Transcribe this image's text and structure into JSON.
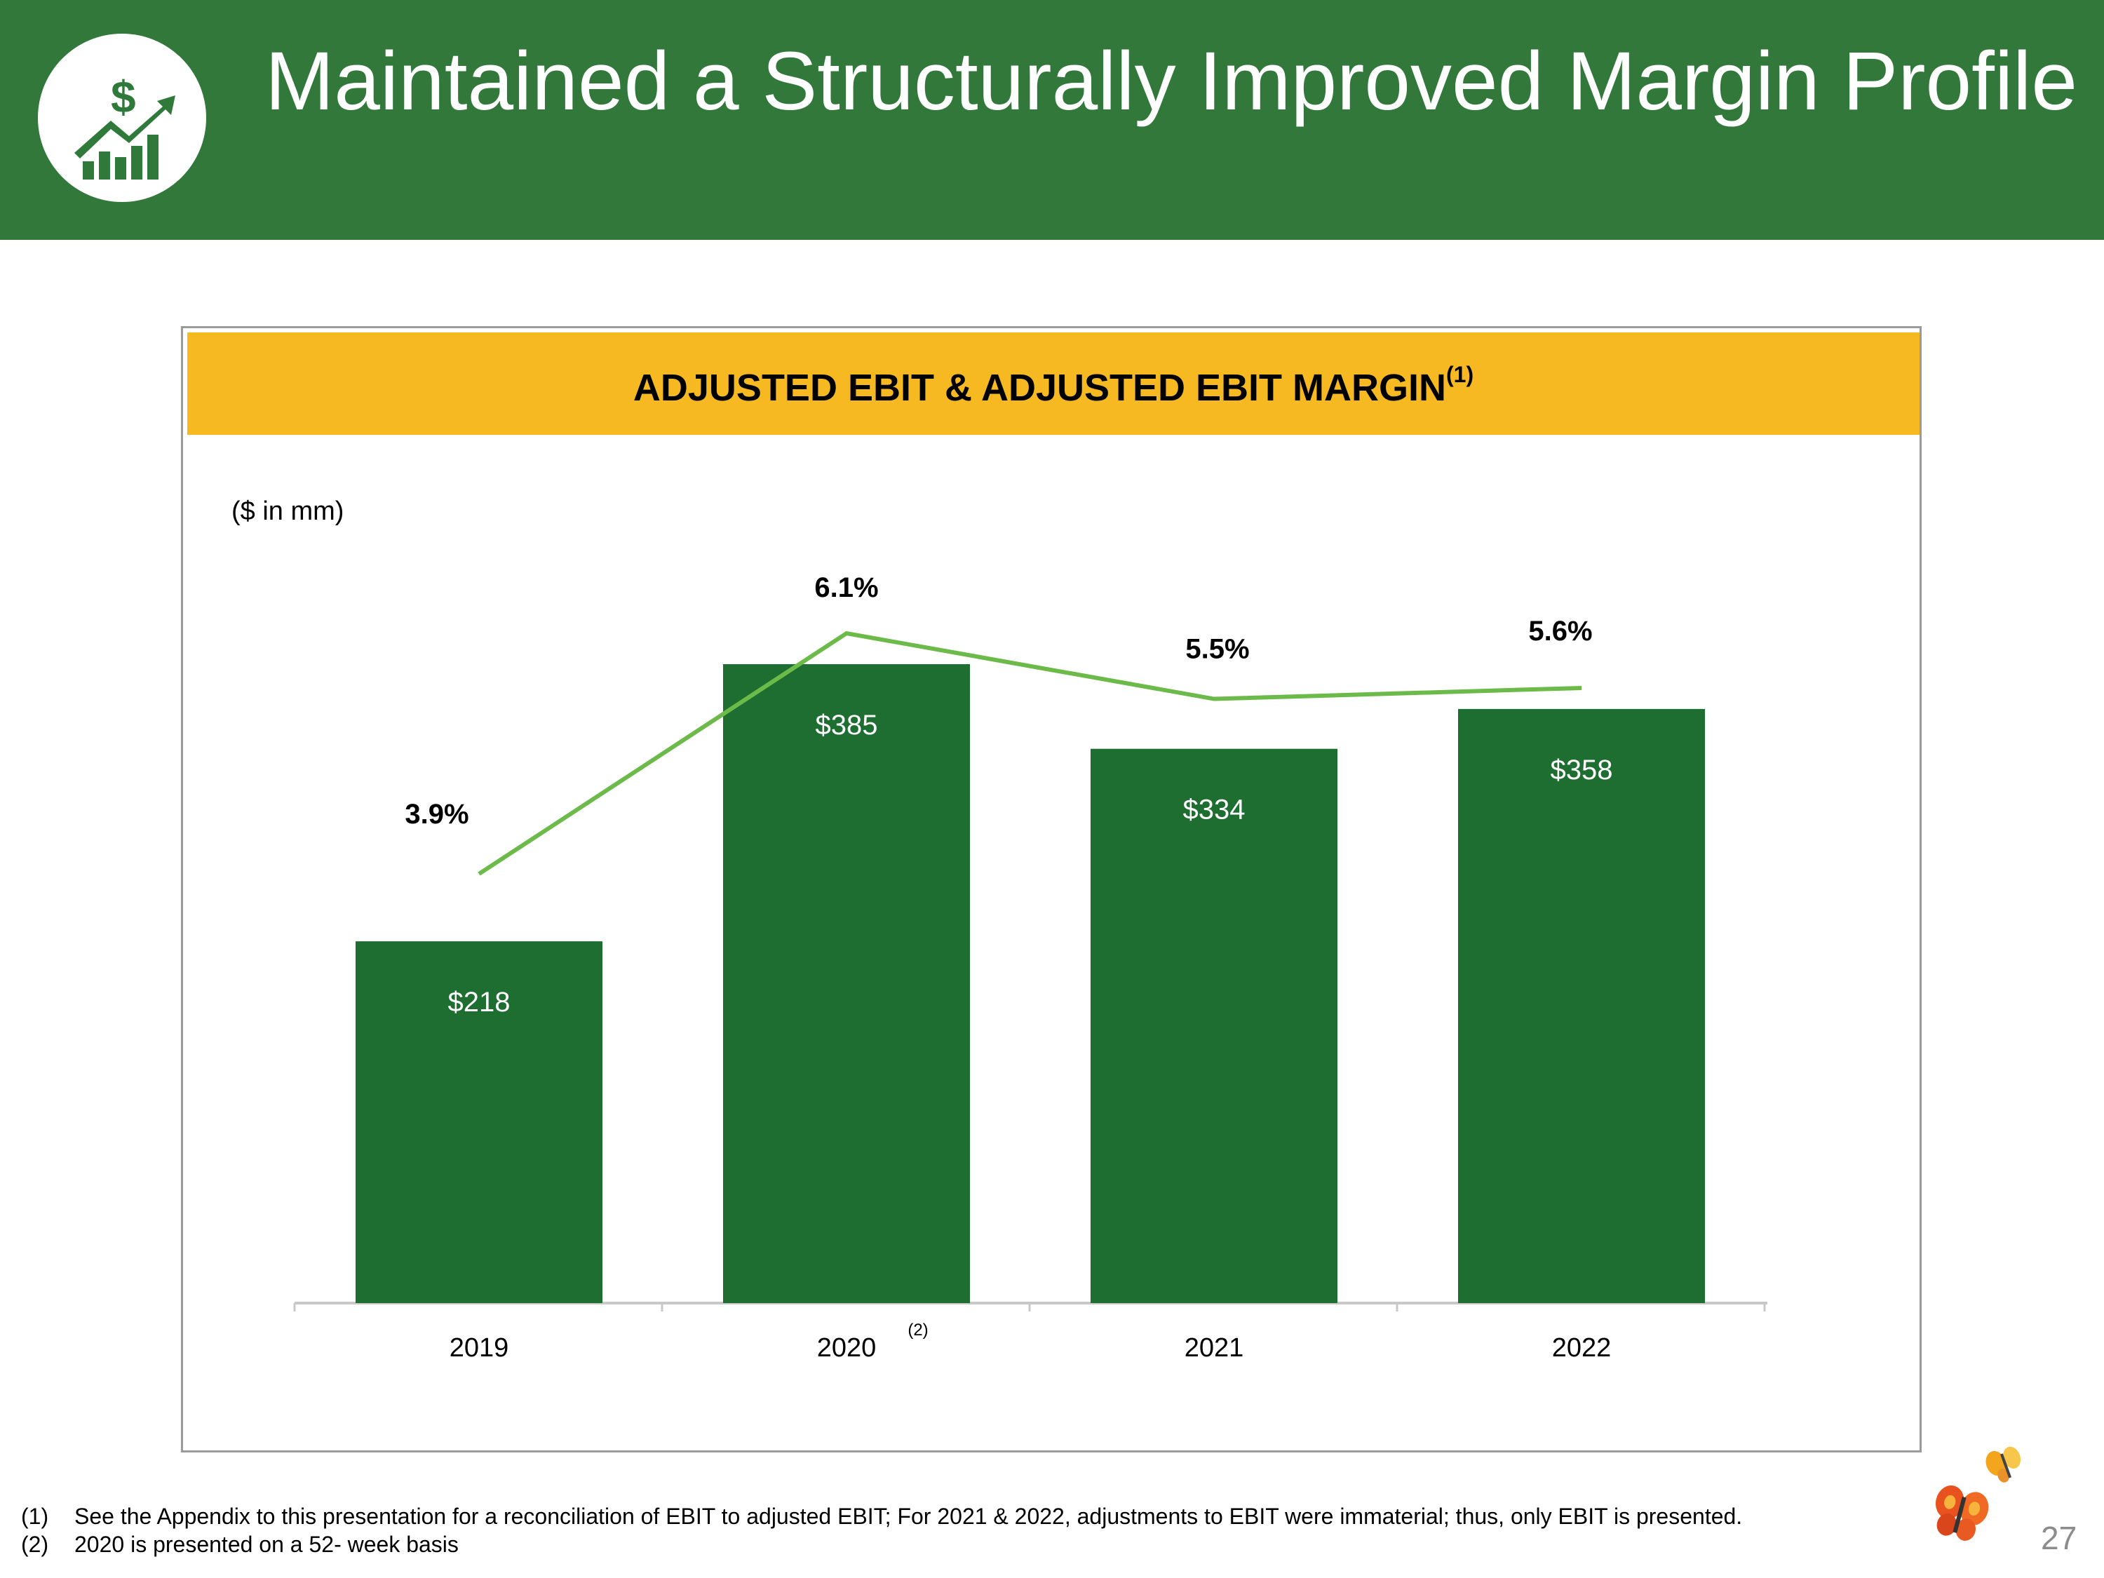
{
  "header": {
    "title": "Maintained a Structurally Improved Margin Profile",
    "logo_icon": "growth-chart-dollar-icon"
  },
  "panel": {
    "title": "ADJUSTED EBIT & ADJUSTED EBIT MARGIN",
    "title_footnote": "(1)",
    "units": "($ in mm)"
  },
  "chart_data": {
    "type": "bar+line",
    "title": "ADJUSTED EBIT & ADJUSTED EBIT MARGIN(1)",
    "categories": [
      "2019",
      "2020",
      "2021",
      "2022"
    ],
    "category_footnotes": [
      "",
      "(2)",
      "",
      ""
    ],
    "series": [
      {
        "name": "Adjusted EBIT ($ in mm)",
        "type": "bar",
        "values": [
          218,
          385,
          334,
          358
        ],
        "labels": [
          "$218",
          "$385",
          "$334",
          "$358"
        ],
        "color": "#1e6e31"
      },
      {
        "name": "Adjusted EBIT Margin",
        "type": "line",
        "values": [
          3.9,
          6.1,
          5.5,
          5.6
        ],
        "labels": [
          "3.9%",
          "6.1%",
          "5.5%",
          "5.6%"
        ],
        "color": "#6cbb4a"
      }
    ],
    "ylabel": "($ in mm)",
    "ylim": [
      0,
      385
    ],
    "y2lim": [
      1.7,
      6.1
    ],
    "grid": false,
    "legend": "none"
  },
  "footnotes": [
    {
      "num": "(1)",
      "text": "See the Appendix to this presentation for a reconciliation of EBIT to adjusted EBIT;  For 2021 & 2022, adjustments to EBIT were immaterial; thus, only EBIT is presented."
    },
    {
      "num": "(2)",
      "text": "2020 is presented on a 52- week basis"
    }
  ],
  "page_number": "27",
  "decorations": {
    "butterfly_icon": "butterfly-icon",
    "colors": {
      "header": "#31783a",
      "banner": "#f6b922",
      "bar": "#1e6e31",
      "line": "#6cbb4a"
    }
  }
}
